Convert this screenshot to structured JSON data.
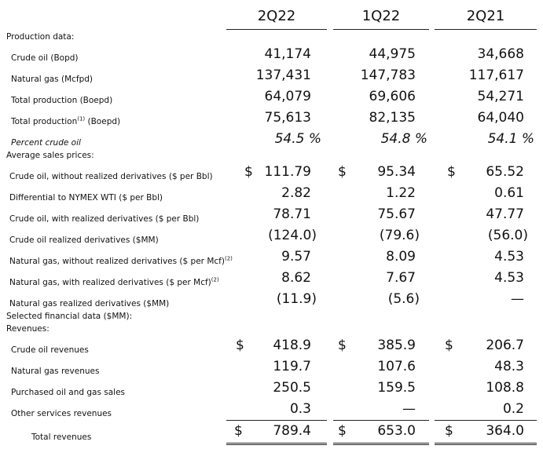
{
  "columns": [
    "2Q22",
    "1Q22",
    "2Q21"
  ],
  "sections": {
    "production": "Production data:",
    "prices": "Average sales prices:",
    "financial": "Selected financial data ($MM):",
    "revenues": "Revenues:"
  },
  "rows": {
    "crude_oil": {
      "label": "Crude oil (Bopd)",
      "v": [
        "41,174",
        "44,975",
        "34,668"
      ]
    },
    "natural_gas": {
      "label": "Natural gas (Mcfpd)",
      "v": [
        "137,431",
        "147,783",
        "117,617"
      ]
    },
    "total_prod": {
      "label": "Total production (Boepd)",
      "v": [
        "64,079",
        "69,606",
        "54,271"
      ]
    },
    "total_prod_1": {
      "label": "Total production",
      "sup": "(1)",
      "label2": " (Boepd)",
      "v": [
        "75,613",
        "82,135",
        "64,040"
      ]
    },
    "pct_crude": {
      "label": "Percent crude oil",
      "v": [
        "54.5 %",
        "54.8 %",
        "54.1 %"
      ]
    },
    "crude_wo": {
      "label": "Crude oil, without realized derivatives ($ per Bbl)",
      "cur": "$",
      "v": [
        "111.79",
        "95.34",
        "65.52"
      ]
    },
    "diff_wti": {
      "label": "Differential to NYMEX WTI ($ per Bbl)",
      "v": [
        "2.82",
        "1.22",
        "0.61"
      ]
    },
    "crude_w": {
      "label": "Crude oil, with realized derivatives ($ per Bbl)",
      "v": [
        "78.71",
        "75.67",
        "47.77"
      ]
    },
    "crude_deriv": {
      "label": "Crude oil realized derivatives ($MM)",
      "v": [
        "(124.0)",
        "(79.6)",
        "(56.0)"
      ]
    },
    "gas_wo": {
      "label": "Natural gas, without realized derivatives ($ per Mcf)",
      "sup": "(2)",
      "v": [
        "9.57",
        "8.09",
        "4.53"
      ]
    },
    "gas_w": {
      "label": "Natural gas, with realized derivatives ($ per Mcf)",
      "sup": "(2)",
      "v": [
        "8.62",
        "7.67",
        "4.53"
      ]
    },
    "gas_deriv": {
      "label": "Natural gas realized derivatives ($MM)",
      "v": [
        "(11.9)",
        "(5.6)",
        "—"
      ]
    },
    "crude_rev": {
      "label": "Crude oil revenues",
      "cur": "$",
      "v": [
        "418.9",
        "385.9",
        "206.7"
      ]
    },
    "gas_rev": {
      "label": "Natural gas revenues",
      "v": [
        "119.7",
        "107.6",
        "48.3"
      ]
    },
    "purchased": {
      "label": "Purchased oil and gas sales",
      "v": [
        "250.5",
        "159.5",
        "108.8"
      ]
    },
    "other_rev": {
      "label": "Other services revenues",
      "v": [
        "0.3",
        "—",
        "0.2"
      ]
    },
    "total_rev": {
      "label": "Total revenues",
      "cur": "$",
      "v": [
        "789.4",
        "653.0",
        "364.0"
      ]
    }
  }
}
